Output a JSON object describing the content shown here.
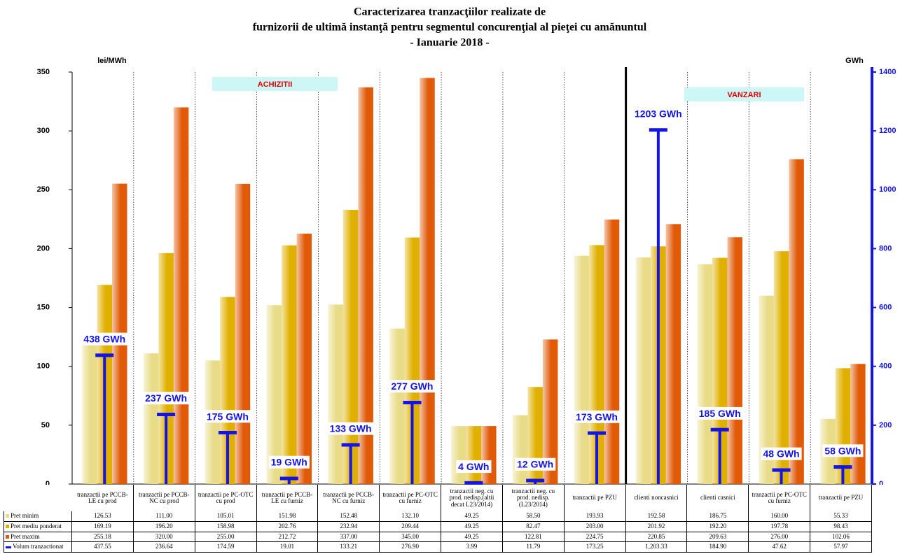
{
  "chart_data": {
    "type": "bar",
    "title": [
      "Caracterizarea tranzacţiilor realizate de",
      "furnizorii de ultimă instanţă pentru segmentul concurenţial al pieţei cu amănuntul",
      "- Ianuarie 2018 -"
    ],
    "ylabel": "lei/MWh",
    "y2label": "GWh",
    "annotations": [
      "ACHIZITII",
      "VANZARI"
    ],
    "categories": [
      "tranzactii pe PCCB-LE cu prod",
      "tranzactii pe PCCB-NC cu prod",
      "tranzactii pe PC-OTC cu prod",
      "tranzactii pe PCCB-LE cu furniz",
      "tranzactii pe PCCB-NC cu furniz",
      "tranzactii pe PC-OTC cu furniz",
      "tranzactii neg. cu prod. nedisp.(altii decat L23/2014)",
      "tranzactii neg. cu prod. nedisp.(L23/2014)",
      "tranzactii pe PZU",
      "clienti noncasnici",
      "clienti casnici",
      "tranzactii pe PC-OTC cu furniz",
      "tranzactii pe PZU"
    ],
    "ylim": [
      0,
      350
    ],
    "yticks": [
      0,
      50,
      100,
      150,
      200,
      250,
      300,
      350
    ],
    "y2lim": [
      0,
      1400
    ],
    "y2ticks": [
      0,
      200,
      400,
      600,
      800,
      1000,
      1200,
      1400
    ],
    "series": [
      {
        "name": "Pret minim",
        "color": "#e8dc88",
        "values": [
          126.53,
          111.0,
          105.01,
          151.98,
          152.48,
          132.1,
          49.25,
          58.5,
          193.93,
          192.58,
          186.75,
          160.0,
          55.33
        ],
        "table_labels": [
          "126.53",
          "111.00",
          "105.01",
          "151.98",
          "152.48",
          "132.10",
          "49.25",
          "58.50",
          "193.93",
          "192.58",
          "186.75",
          "160.00",
          "55.33"
        ]
      },
      {
        "name": "Pret mediu ponderat",
        "color": "#e0b000",
        "values": [
          169.19,
          196.2,
          158.98,
          202.76,
          232.94,
          209.44,
          49.25,
          82.47,
          203.0,
          201.92,
          192.2,
          197.78,
          98.43
        ],
        "table_labels": [
          "169.19",
          "196.20",
          "158.98",
          "202.76",
          "232.94",
          "209.44",
          "49.25",
          "82.47",
          "203.00",
          "201.92",
          "192.20",
          "197.78",
          "98.43"
        ]
      },
      {
        "name": "Pret maxim",
        "color": "#e05a08",
        "values": [
          255.18,
          320.0,
          255.0,
          212.72,
          337.0,
          345.0,
          49.25,
          122.81,
          224.75,
          220.85,
          209.63,
          276.0,
          102.06
        ],
        "table_labels": [
          "255.18",
          "320.00",
          "255.00",
          "212.72",
          "337.00",
          "345.00",
          "49.25",
          "122.81",
          "224.75",
          "220.85",
          "209.63",
          "276.00",
          "102.06"
        ]
      },
      {
        "name": "Volum tranzactionat",
        "color": "#1414e6",
        "axis": "y2",
        "values": [
          437.55,
          236.64,
          174.59,
          19.01,
          133.21,
          276.9,
          3.99,
          11.79,
          173.25,
          1203.33,
          184.9,
          47.62,
          57.97
        ],
        "value_labels": [
          "438 GWh",
          "237 GWh",
          "175 GWh",
          "19 GWh",
          "133 GWh",
          "277 GWh",
          "4 GWh",
          "12 GWh",
          "173 GWh",
          "1203 GWh",
          "185 GWh",
          "48 GWh",
          "58 GWh"
        ],
        "table_labels": [
          "437.55",
          "236.64",
          "174.59",
          "19.01",
          "133.21",
          "276.90",
          "3.99",
          "11.79",
          "173.25",
          "1,203.33",
          "184.90",
          "47.62",
          "57.97"
        ]
      }
    ]
  }
}
